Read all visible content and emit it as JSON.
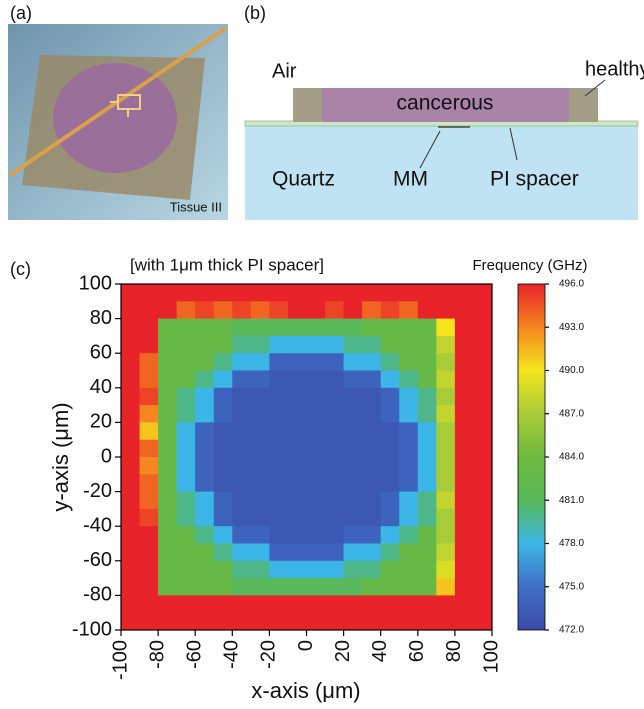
{
  "panel_labels": [
    "(a)",
    "(b)",
    "(c)"
  ],
  "photo": {
    "label": "Tissue III"
  },
  "diagram": {
    "air": "Air",
    "healthy": "healthy",
    "cancerous": "cancerous",
    "quartz": "Quartz",
    "mm": "MM",
    "spacer": "PI spacer"
  },
  "chart_data": {
    "type": "heatmap",
    "title": "[with 1μm thick PI spacer]",
    "xlabel": "x-axis (μm)",
    "ylabel": "y-axis (μm)",
    "x": [
      -95,
      -85,
      -75,
      -65,
      -55,
      -45,
      -35,
      -25,
      -15,
      -5,
      5,
      15,
      25,
      35,
      45,
      55,
      65,
      75,
      85,
      95
    ],
    "y": [
      95,
      85,
      75,
      65,
      55,
      45,
      35,
      25,
      15,
      5,
      -5,
      -15,
      -25,
      -35,
      -45,
      -55,
      -65,
      -75,
      -85,
      -95
    ],
    "z": [
      [
        496,
        496,
        496,
        496,
        496,
        496,
        496,
        496,
        496,
        496,
        496,
        496,
        496,
        496,
        496,
        496,
        496,
        496,
        496,
        496
      ],
      [
        496,
        496,
        496,
        494,
        495,
        494,
        495,
        494,
        495,
        496,
        496,
        495,
        496,
        494,
        495,
        494,
        496,
        496,
        496,
        496
      ],
      [
        496,
        496,
        483,
        483,
        483,
        483,
        481,
        481,
        481,
        481,
        481,
        481,
        481,
        483,
        483,
        483,
        483,
        490,
        496,
        496
      ],
      [
        496,
        496,
        483,
        483,
        483,
        483,
        480,
        480,
        478,
        478,
        478,
        478,
        480,
        480,
        483,
        483,
        483,
        488,
        496,
        496
      ],
      [
        496,
        494,
        483,
        483,
        483,
        480,
        478,
        478,
        474,
        474,
        474,
        474,
        478,
        478,
        480,
        483,
        483,
        487,
        496,
        496
      ],
      [
        496,
        494,
        483,
        483,
        480,
        478,
        474,
        474,
        473,
        473,
        473,
        473,
        474,
        474,
        478,
        480,
        483,
        488,
        496,
        496
      ],
      [
        496,
        495,
        483,
        480,
        478,
        474,
        473,
        473,
        473,
        473,
        473,
        473,
        473,
        473,
        474,
        478,
        480,
        487,
        496,
        496
      ],
      [
        496,
        493,
        483,
        480,
        478,
        474,
        473,
        473,
        473,
        473,
        473,
        473,
        473,
        473,
        474,
        478,
        480,
        488,
        496,
        496
      ],
      [
        496,
        491,
        483,
        478,
        474,
        473,
        473,
        473,
        473,
        473,
        473,
        473,
        473,
        473,
        473,
        474,
        478,
        487,
        496,
        496
      ],
      [
        496,
        494,
        483,
        478,
        474,
        473,
        473,
        473,
        473,
        473,
        473,
        473,
        473,
        473,
        473,
        474,
        478,
        487,
        496,
        496
      ],
      [
        496,
        493,
        483,
        478,
        474,
        473,
        473,
        473,
        473,
        473,
        473,
        473,
        473,
        473,
        473,
        474,
        478,
        487,
        496,
        496
      ],
      [
        496,
        494,
        483,
        478,
        474,
        473,
        473,
        473,
        473,
        473,
        473,
        473,
        473,
        473,
        473,
        474,
        478,
        487,
        496,
        496
      ],
      [
        496,
        494,
        483,
        480,
        478,
        474,
        473,
        473,
        473,
        473,
        473,
        473,
        473,
        473,
        474,
        478,
        480,
        488,
        496,
        496
      ],
      [
        496,
        495,
        483,
        480,
        478,
        474,
        473,
        473,
        473,
        473,
        473,
        473,
        473,
        473,
        474,
        478,
        480,
        487,
        496,
        496
      ],
      [
        496,
        496,
        483,
        483,
        480,
        478,
        474,
        474,
        473,
        473,
        473,
        473,
        474,
        474,
        478,
        480,
        483,
        487,
        496,
        496
      ],
      [
        496,
        496,
        483,
        483,
        483,
        480,
        478,
        478,
        474,
        474,
        474,
        474,
        478,
        478,
        480,
        483,
        483,
        488,
        496,
        496
      ],
      [
        496,
        496,
        483,
        483,
        483,
        483,
        480,
        480,
        478,
        478,
        478,
        478,
        480,
        480,
        483,
        483,
        483,
        489,
        496,
        496
      ],
      [
        496,
        496,
        483,
        483,
        483,
        483,
        481,
        481,
        481,
        481,
        481,
        481,
        481,
        483,
        483,
        483,
        483,
        491,
        496,
        496
      ],
      [
        496,
        496,
        496,
        496,
        496,
        496,
        496,
        496,
        496,
        496,
        496,
        496,
        496,
        496,
        496,
        496,
        496,
        496,
        496,
        496
      ],
      [
        496,
        496,
        496,
        496,
        496,
        496,
        496,
        496,
        496,
        496,
        496,
        496,
        496,
        496,
        496,
        496,
        496,
        496,
        496,
        496
      ]
    ],
    "xlim": [
      -100,
      100
    ],
    "ylim": [
      -100,
      100
    ],
    "xticks": [
      -100,
      -80,
      -60,
      -40,
      -20,
      0,
      20,
      40,
      60,
      80,
      100
    ],
    "yticks": [
      100,
      80,
      60,
      40,
      20,
      0,
      -20,
      -40,
      -60,
      -80,
      -100
    ],
    "colorbar": {
      "title": "Frequency (GHz)",
      "zlim": [
        472,
        496
      ],
      "ticks": [
        {
          "value": 496,
          "label": "496.0"
        },
        {
          "value": 493,
          "label": "493.0"
        },
        {
          "value": 490,
          "label": "490.0"
        },
        {
          "value": 487,
          "label": "487.0"
        },
        {
          "value": 484,
          "label": "484.0"
        },
        {
          "value": 481,
          "label": "481.0"
        },
        {
          "value": 478,
          "label": "478.0"
        },
        {
          "value": 475,
          "label": "475.0"
        },
        {
          "value": 472,
          "label": "472.0"
        }
      ],
      "colors": [
        "#3b4ca8",
        "#3f6fc6",
        "#3bb6e6",
        "#58b85a",
        "#6dba3e",
        "#a8cc38",
        "#f4e51c",
        "#f6861f",
        "#e8232a"
      ]
    }
  }
}
